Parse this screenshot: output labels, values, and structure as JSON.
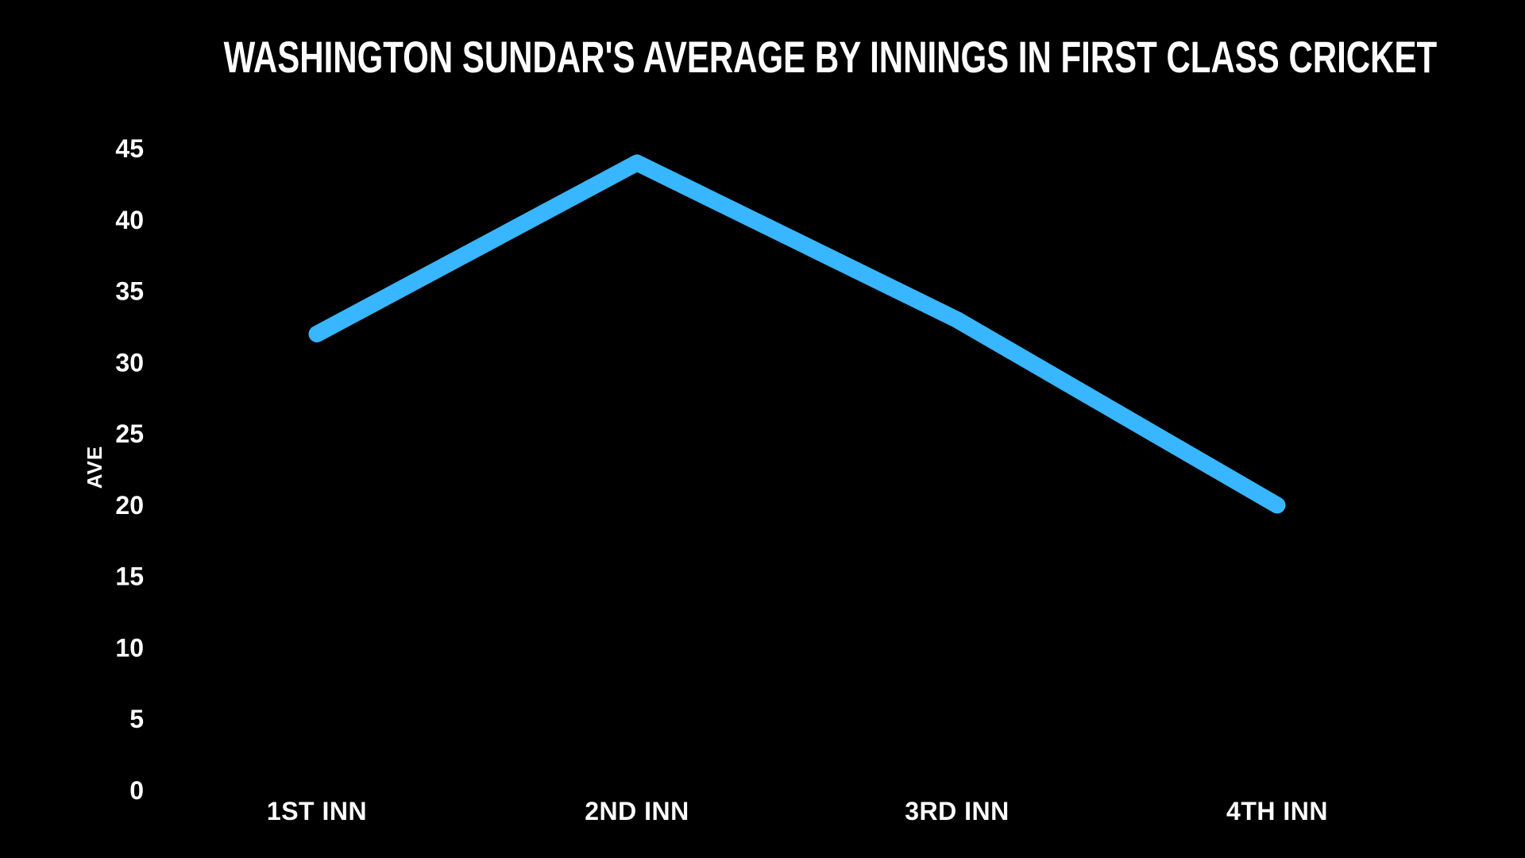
{
  "page": {
    "background_color": "#000000",
    "text_color": "#ffffff"
  },
  "chart_data": {
    "type": "line",
    "title": "WASHINGTON SUNDAR'S AVERAGE BY INNINGS IN FIRST CLASS CRICKET",
    "categories": [
      "1ST INN",
      "2ND INN",
      "3RD INN",
      "4TH INN"
    ],
    "series": [
      {
        "name": "Average",
        "values": [
          32,
          44,
          33,
          20
        ]
      }
    ],
    "xlabel": "",
    "ylabel": "AVE",
    "ylim": [
      0,
      45
    ],
    "yticks": [
      0,
      5,
      10,
      15,
      20,
      25,
      30,
      35,
      40,
      45
    ],
    "grid": false,
    "legend_position": "none",
    "line_color": "#38B6FF",
    "line_width": 21,
    "marker": "none",
    "background_color": "#000000",
    "tick_label_color": "#ffffff"
  }
}
